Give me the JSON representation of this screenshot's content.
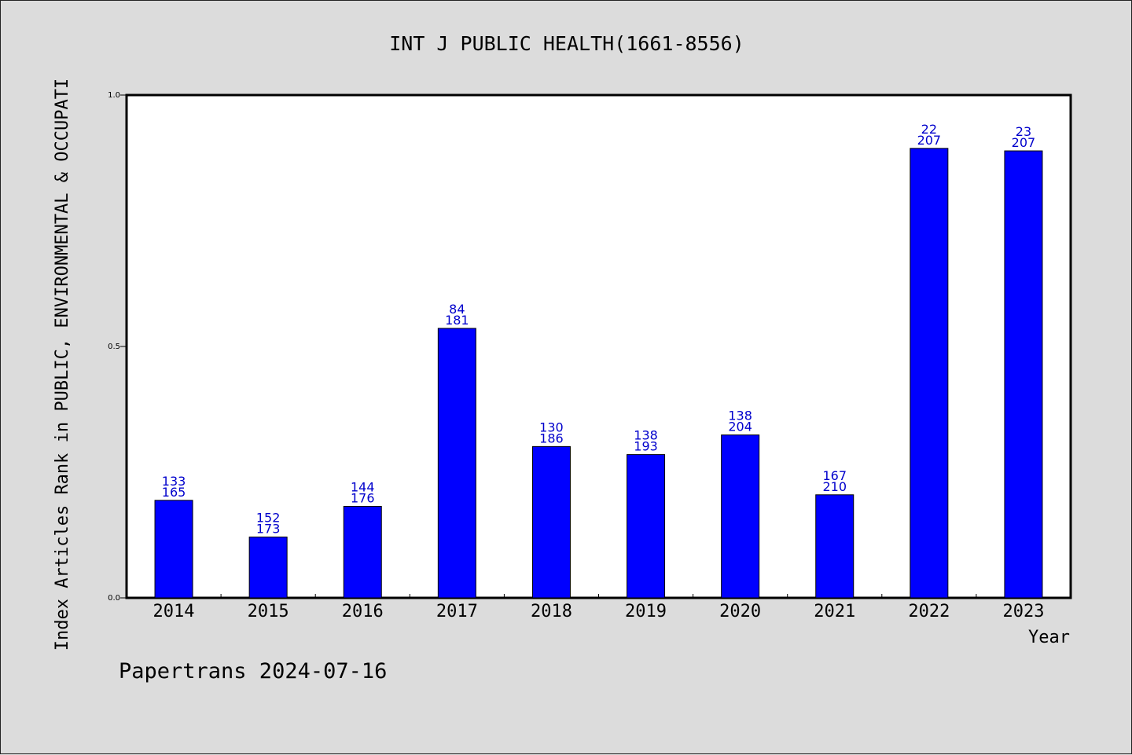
{
  "chart_data": {
    "type": "bar",
    "title": "INT J PUBLIC HEALTH(1661-8556)",
    "xlabel": "Year",
    "ylabel": "Index Articles Rank in PUBLIC, ENVIRONMENTAL & OCCUPATI",
    "ylim": [
      0,
      1.0
    ],
    "yticks": [
      "0.0",
      "0.5",
      "1.0"
    ],
    "categories": [
      "2014",
      "2015",
      "2016",
      "2017",
      "2018",
      "2019",
      "2020",
      "2021",
      "2022",
      "2023"
    ],
    "values": [
      0.194,
      0.121,
      0.182,
      0.536,
      0.301,
      0.285,
      0.324,
      0.205,
      0.894,
      0.889
    ],
    "rank": [
      "133",
      "152",
      "144",
      "84",
      "130",
      "138",
      "138",
      "167",
      "22",
      "23"
    ],
    "total": [
      "165",
      "173",
      "176",
      "181",
      "186",
      "193",
      "204",
      "210",
      "207",
      "207"
    ],
    "grid": false,
    "legend": "none",
    "colors": {
      "bar": "#0000ff",
      "label": "#0000cc",
      "background": "#dcdcdc",
      "plot_bg": "#ffffff"
    }
  },
  "footer": "Papertrans 2024-07-16"
}
